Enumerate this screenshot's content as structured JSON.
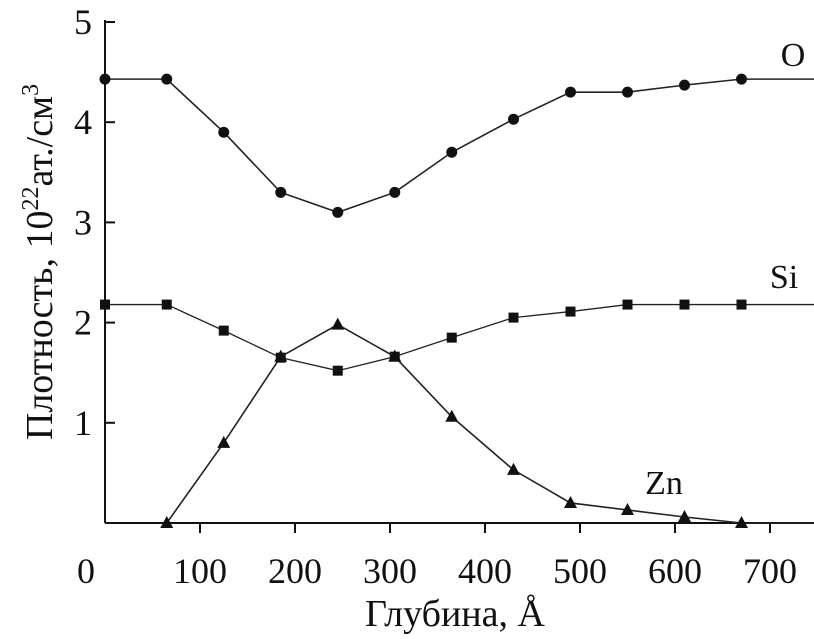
{
  "chart_data": {
    "type": "line",
    "xlabel": "Глубина, Å",
    "ylabel": {
      "text": "Плотность, 10",
      "exponent": "22",
      "unit": "ат./см",
      "unit_exponent": "3"
    },
    "xlim": [
      0,
      750
    ],
    "ylim": [
      0,
      5
    ],
    "x_ticks": [
      0,
      100,
      200,
      300,
      400,
      500,
      600,
      700
    ],
    "y_ticks": [
      1,
      2,
      3,
      4,
      5
    ],
    "x_tick_labels": [
      "0",
      "100",
      "200",
      "300",
      "400",
      "500",
      "600",
      "700"
    ],
    "y_tick_labels": [
      "1",
      "2",
      "3",
      "4",
      "5"
    ],
    "grid": false,
    "series": [
      {
        "name": "O",
        "marker": "circle",
        "x": [
          0,
          65,
          125,
          185,
          245,
          305,
          365,
          430,
          490,
          550,
          610,
          670
        ],
        "y": [
          4.43,
          4.43,
          3.9,
          3.3,
          3.1,
          3.3,
          3.7,
          4.03,
          4.3,
          4.3,
          4.37,
          4.43
        ],
        "tail_to": 750
      },
      {
        "name": "Si",
        "marker": "square",
        "x": [
          0,
          65,
          125,
          185,
          245,
          305,
          365,
          430,
          490,
          550,
          610,
          670
        ],
        "y": [
          2.18,
          2.18,
          1.92,
          1.65,
          1.52,
          1.66,
          1.85,
          2.05,
          2.11,
          2.18,
          2.18,
          2.18
        ],
        "tail_to": 750
      },
      {
        "name": "Zn",
        "marker": "triangle",
        "x": [
          65,
          125,
          185,
          245,
          305,
          365,
          430,
          490,
          550,
          610,
          670
        ],
        "y": [
          0.0,
          0.8,
          1.66,
          1.98,
          1.66,
          1.06,
          0.53,
          0.2,
          0.13,
          0.06,
          0.0
        ],
        "tail_to": 750
      }
    ]
  }
}
